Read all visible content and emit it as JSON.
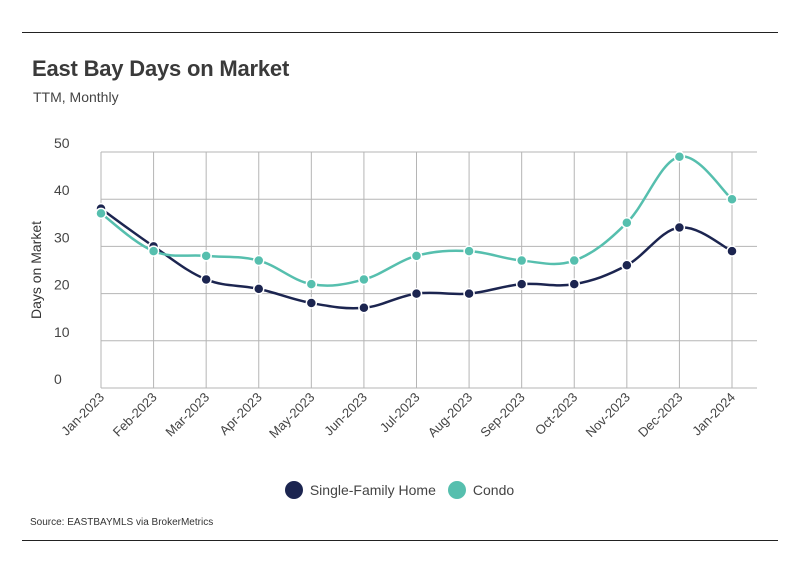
{
  "title": "East Bay Days on Market",
  "subtitle": "TTM, Monthly",
  "source": "Source:  EASTBAYMLS via BrokerMetrics",
  "chart_data": {
    "type": "line",
    "title": "East Bay Days on Market",
    "subtitle": "TTM, Monthly",
    "xlabel": "",
    "ylabel": "Days on Market",
    "ylim": [
      0,
      50
    ],
    "yticks": [
      0,
      10,
      20,
      30,
      40,
      50
    ],
    "grid": true,
    "legend_position": "bottom",
    "categories": [
      "Jan-2023",
      "Feb-2023",
      "Mar-2023",
      "Apr-2023",
      "May-2023",
      "Jun-2023",
      "Jul-2023",
      "Aug-2023",
      "Sep-2023",
      "Oct-2023",
      "Nov-2023",
      "Dec-2023",
      "Jan-2024"
    ],
    "series": [
      {
        "name": "Single-Family Home",
        "color": "#1c2550",
        "values": [
          38,
          30,
          23,
          21,
          18,
          17,
          20,
          20,
          22,
          22,
          26,
          34,
          29
        ]
      },
      {
        "name": "Condo",
        "color": "#56bfae",
        "values": [
          37,
          29,
          28,
          27,
          22,
          23,
          28,
          29,
          27,
          27,
          35,
          49,
          40
        ]
      }
    ]
  }
}
